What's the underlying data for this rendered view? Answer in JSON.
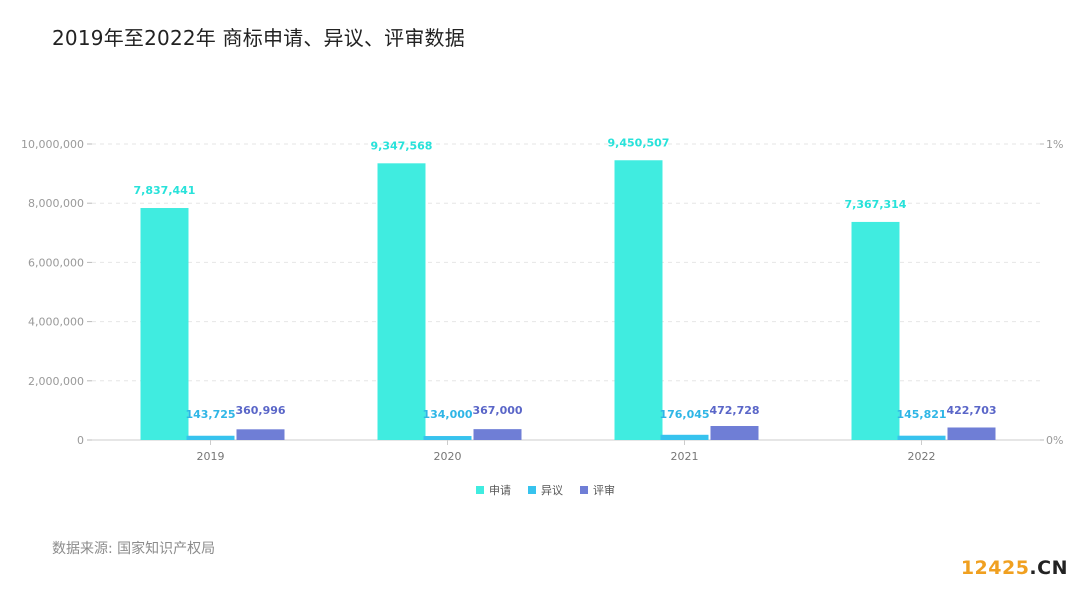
{
  "title": "2019年至2022年 商标申请、异议、评审数据",
  "source": "数据来源: 国家知识产权局",
  "watermark": {
    "number": "12425",
    "suffix": ".CN"
  },
  "colors": {
    "application": "#40ECE0",
    "opposition": "#37C3EE",
    "review": "#6F7ED6",
    "label_application": "#28E2DA",
    "label_opposition": "#2FB6E6",
    "label_review": "#5A66C8",
    "grid": "#e6e6e6"
  },
  "chart_data": {
    "type": "bar",
    "categories": [
      "2019",
      "2020",
      "2021",
      "2022"
    ],
    "series": [
      {
        "name": "申请",
        "values": [
          7837441,
          9347568,
          9450507,
          7367314
        ],
        "labels": [
          "7,837,441",
          "9,347,568",
          "9,450,507",
          "7,367,314"
        ]
      },
      {
        "name": "异议",
        "values": [
          143725,
          134000,
          176045,
          145821
        ],
        "labels": [
          "143,725",
          "134,000",
          "176,045",
          "145,821"
        ]
      },
      {
        "name": "评审",
        "values": [
          360996,
          367000,
          472728,
          422703
        ],
        "labels": [
          "360,996",
          "367,000",
          "472,728",
          "422,703"
        ]
      }
    ],
    "y_ticks": [
      "0",
      "2,000,000",
      "4,000,000",
      "6,000,000",
      "8,000,000",
      "10,000,000"
    ],
    "ylim": [
      0,
      10000000
    ],
    "y2_ticks": [
      "0%",
      "1%"
    ],
    "legend_position": "bottom-center",
    "grid": true
  }
}
